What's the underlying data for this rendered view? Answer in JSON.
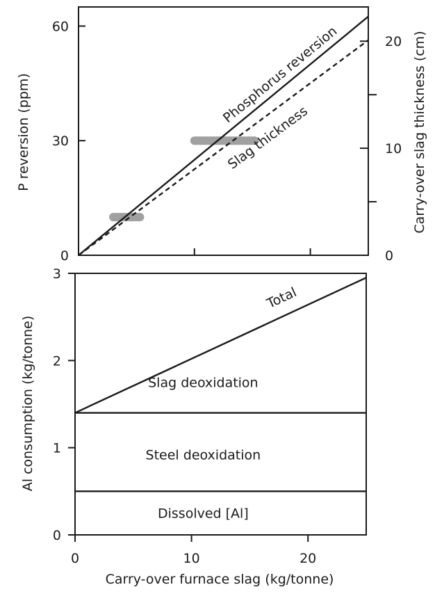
{
  "chart_data": [
    {
      "type": "line",
      "title": "",
      "xlabel": "",
      "ylabel": "P reversion (ppm)",
      "y2label": "Carry-over slag thickness (cm)",
      "xlim": [
        0,
        25
      ],
      "ylim": [
        0,
        65
      ],
      "y2lim": [
        0,
        23.2
      ],
      "xticks": [
        0,
        10,
        20
      ],
      "yticks": [
        0,
        30,
        60
      ],
      "y2ticks": [
        0,
        10,
        20
      ],
      "y2minor": [
        5,
        15
      ],
      "x_tick_labels_shown": false,
      "series": [
        {
          "name": "Phosphorus reversion",
          "axis": "left",
          "style": "solid",
          "color": "#1a1a1a",
          "x": [
            0,
            25
          ],
          "y": [
            0,
            62.5
          ]
        },
        {
          "name": "Slag thickness",
          "axis": "right",
          "style": "dashed",
          "color": "#1a1a1a",
          "x": [
            0,
            25
          ],
          "y": [
            0,
            20.1
          ]
        }
      ],
      "ranges": [
        {
          "axis": "left",
          "y": 10,
          "x_from": 3,
          "x_to": 5.3,
          "color": "#a0a0a0"
        },
        {
          "axis": "left",
          "y": 30,
          "x_from": 10,
          "x_to": 15.2,
          "color": "#a0a0a0"
        }
      ],
      "grid": false
    },
    {
      "type": "area",
      "title": "",
      "xlabel": "Carry-over furnace slag (kg/tonne)",
      "ylabel": "Al consumption (kg/tonne)",
      "xlim": [
        0,
        25
      ],
      "ylim": [
        0,
        3
      ],
      "xticks": [
        0,
        10,
        20
      ],
      "yticks": [
        0,
        1,
        2,
        3
      ],
      "series": [
        {
          "name": "Dissolved [Al]",
          "x": [
            0,
            25
          ],
          "y": [
            0.5,
            0.5
          ]
        },
        {
          "name": "Steel deoxidation",
          "x": [
            0,
            25
          ],
          "y": [
            1.4,
            1.4
          ]
        },
        {
          "name": "Total",
          "x": [
            0,
            25
          ],
          "y": [
            1.4,
            2.95
          ]
        }
      ],
      "region_labels": [
        {
          "text": "Slag deoxidation",
          "x": 11,
          "y": 1.75
        },
        {
          "text": "Steel deoxidation",
          "x": 11,
          "y": 0.92
        },
        {
          "text": "Dissolved [Al]",
          "x": 11,
          "y": 0.25
        }
      ],
      "grid": false
    }
  ]
}
